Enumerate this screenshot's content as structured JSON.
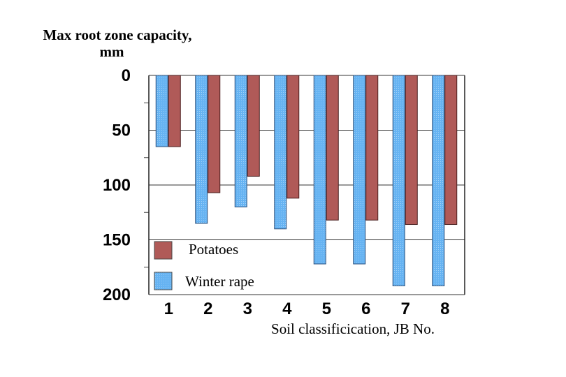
{
  "chart_data": {
    "type": "bar",
    "ylabel": "Max root zone capacity,",
    "ylabel_unit": "mm",
    "xlabel": "Soil classificication, JB No.",
    "categories": [
      "1",
      "2",
      "3",
      "4",
      "5",
      "6",
      "7",
      "8"
    ],
    "series": [
      {
        "name": "Winter rape",
        "color": "#66b3f2",
        "values": [
          65,
          135,
          120,
          140,
          172,
          172,
          192,
          192
        ]
      },
      {
        "name": "Potatoes",
        "color": "#b05a58",
        "values": [
          65,
          107,
          92,
          112,
          132,
          132,
          136,
          136
        ]
      }
    ],
    "ylim": [
      0,
      200
    ],
    "y_ticks": [
      "0",
      "50",
      "100",
      "150",
      "200"
    ],
    "y_axis_inverted": true,
    "grid": true,
    "legend_placement": "bottom-left"
  }
}
